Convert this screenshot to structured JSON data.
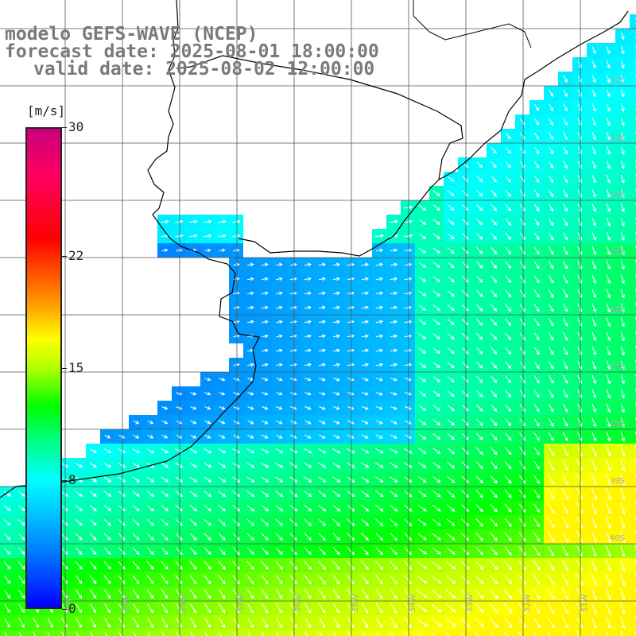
{
  "title": {
    "line1": "modelo GEFS-WAVE (NCEP)",
    "line2": "forecast date: 2025-08-01 18:00:00",
    "line3": "valid date: 2025-08-02 12:00:00"
  },
  "colorbar": {
    "unit": "[m/s]",
    "ticks": [
      {
        "label": "30",
        "value": 30
      },
      {
        "label": "22",
        "value": 22
      },
      {
        "label": "15",
        "value": 15
      },
      {
        "label": "8",
        "value": 8
      },
      {
        "label": "0",
        "value": 0
      }
    ],
    "vmin": 0,
    "vmax": 30
  },
  "lat_labels": [
    "32S",
    "33S",
    "34S",
    "35S",
    "36S",
    "37S",
    "38S",
    "39S",
    "40S"
  ],
  "lon_labels": [
    "60W",
    "59W",
    "58W",
    "57W",
    "56W",
    "55W",
    "54W",
    "53W",
    "52W",
    "51W"
  ],
  "colors": {
    "land": "#ffffff",
    "grid": "#555555",
    "arrow": "#ffffff",
    "coast": "#000000"
  }
}
